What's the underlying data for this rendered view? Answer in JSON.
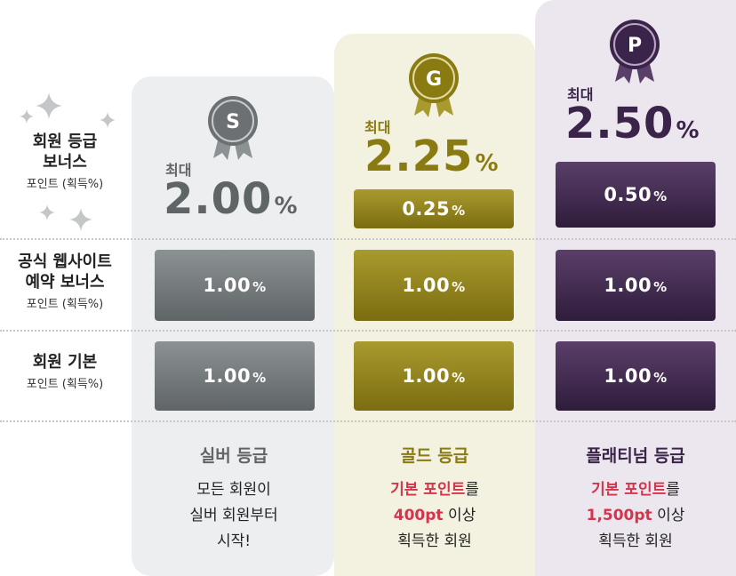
{
  "rows": {
    "bonus_grade": {
      "line1": "회원 등급",
      "line1b": "보너스",
      "line2": "포인트 (획득%)"
    },
    "web_booking": {
      "line1": "공식 웹사이트",
      "line1b": "예약 보너스",
      "line2": "포인트 (획득%)"
    },
    "basic": {
      "line1": "회원 기본",
      "line2": "포인트 (획득%)"
    }
  },
  "tiers": {
    "silver": {
      "letter": "S",
      "max_prefix": "최대",
      "max_value": "2.00",
      "max_unit": "%",
      "web_bonus": "1.00",
      "basic": "1.00",
      "unit": "%",
      "name": "실버 등급",
      "desc_1": "모든 회원이",
      "desc_2": "실버 회원부터",
      "desc_3": "시작!",
      "color": "#5f6467"
    },
    "gold": {
      "letter": "G",
      "max_prefix": "최대",
      "max_value": "2.25",
      "max_unit": "%",
      "grade_bonus": "0.25",
      "web_bonus": "1.00",
      "basic": "1.00",
      "unit": "%",
      "name": "골드 등급",
      "desc_1_hl": "기본 포인트",
      "desc_1_rest": "를",
      "desc_2_hl": "400pt",
      "desc_2_rest": " 이상",
      "desc_3": "획득한 회원",
      "color": "#8a7a12"
    },
    "platinum": {
      "letter": "P",
      "max_prefix": "최대",
      "max_value": "2.50",
      "max_unit": "%",
      "grade_bonus": "0.50",
      "web_bonus": "1.00",
      "basic": "1.00",
      "unit": "%",
      "name": "플래티넘 등급",
      "desc_1_hl": "기본 포인트",
      "desc_1_rest": "를",
      "desc_2_hl": "1,500pt",
      "desc_2_rest": " 이상",
      "desc_3": "획득한 회원",
      "color": "#3b2449"
    }
  },
  "colors": {
    "highlight": "#d4344c",
    "silver": "#6b7073",
    "gold": "#8a7a12",
    "platinum": "#3b2449"
  }
}
